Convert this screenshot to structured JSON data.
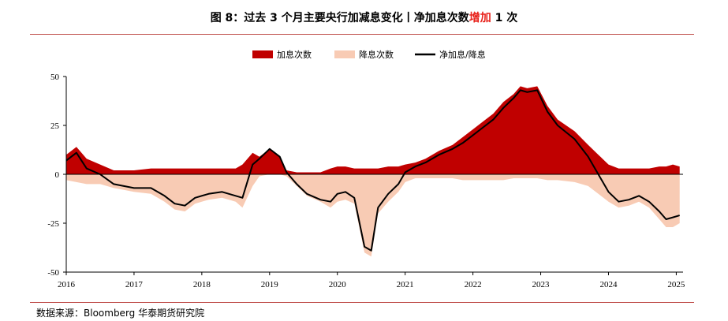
{
  "header": {
    "title_main": "图 8：过去 3 个月主要央行加减息变化丨净加息次数",
    "title_highlight": "增加",
    "title_tail": " 1 次"
  },
  "source_text": "数据来源：Bloomberg 华泰期货研究院",
  "chart_data": {
    "type": "area",
    "title": "图 8：过去 3 个月主要央行加减息变化丨净加息次数增加 1 次",
    "xlabel": "",
    "ylabel": "",
    "x_ticks": [
      "2016",
      "2017",
      "2018",
      "2019",
      "2020",
      "2021",
      "2022",
      "2023",
      "2024",
      "2025"
    ],
    "y_ticks": [
      "50",
      "25",
      "0",
      "-25",
      "-50"
    ],
    "ylim": [
      -50,
      50
    ],
    "xlim": [
      2016.0,
      2025.1
    ],
    "grid": false,
    "legend_position": "top-center",
    "colors": {
      "hikes": "#c00000",
      "cuts": "#f8cbb4",
      "net": "#000000"
    },
    "x": [
      2016.0,
      2016.15,
      2016.3,
      2016.5,
      2016.7,
      2016.85,
      2017.0,
      2017.25,
      2017.45,
      2017.6,
      2017.75,
      2017.9,
      2018.1,
      2018.3,
      2018.5,
      2018.6,
      2018.75,
      2018.85,
      2019.0,
      2019.15,
      2019.25,
      2019.4,
      2019.55,
      2019.75,
      2019.9,
      2020.0,
      2020.12,
      2020.25,
      2020.4,
      2020.5,
      2020.6,
      2020.75,
      2020.9,
      2021.0,
      2021.15,
      2021.3,
      2021.5,
      2021.7,
      2021.85,
      2022.0,
      2022.15,
      2022.3,
      2022.45,
      2022.6,
      2022.7,
      2022.8,
      2022.95,
      2023.1,
      2023.25,
      2023.5,
      2023.7,
      2023.85,
      2024.0,
      2024.15,
      2024.3,
      2024.45,
      2024.6,
      2024.75,
      2024.85,
      2024.95,
      2025.05
    ],
    "series": [
      {
        "name": "加息次数",
        "values": [
          10,
          14,
          8,
          5,
          2,
          2,
          2,
          3,
          3,
          3,
          3,
          3,
          3,
          3,
          3,
          5,
          11,
          9,
          13,
          9,
          2,
          1,
          1,
          1,
          3,
          4,
          4,
          3,
          3,
          3,
          3,
          4,
          4,
          5,
          6,
          8,
          12,
          15,
          19,
          23,
          27,
          31,
          37,
          41,
          45,
          44,
          45,
          35,
          28,
          22,
          15,
          10,
          5,
          3,
          3,
          3,
          3,
          4,
          4,
          5,
          4
        ]
      },
      {
        "name": "降息次数",
        "values": [
          -3,
          -4,
          -5,
          -5,
          -7,
          -8,
          -9,
          -10,
          -14,
          -18,
          -19,
          -15,
          -13,
          -12,
          -14,
          -17,
          -6,
          -1,
          0,
          0,
          -1,
          -6,
          -11,
          -14,
          -17,
          -14,
          -13,
          -15,
          -40,
          -42,
          -20,
          -14,
          -9,
          -4,
          -2,
          -2,
          -2,
          -2,
          -3,
          -3,
          -3,
          -3,
          -3,
          -2,
          -2,
          -2,
          -2,
          -3,
          -3,
          -4,
          -6,
          -10,
          -14,
          -17,
          -16,
          -14,
          -17,
          -23,
          -27,
          -27,
          -25
        ]
      },
      {
        "name": "净加息/降息",
        "values": [
          7,
          11,
          3,
          0,
          -5,
          -6,
          -7,
          -7,
          -11,
          -15,
          -16,
          -12,
          -10,
          -9,
          -11,
          -12,
          5,
          8,
          13,
          9,
          1,
          -5,
          -10,
          -13,
          -14,
          -10,
          -9,
          -12,
          -37,
          -39,
          -17,
          -10,
          -5,
          1,
          4,
          6,
          10,
          13,
          16,
          20,
          24,
          28,
          34,
          39,
          43,
          42,
          43,
          32,
          25,
          18,
          9,
          0,
          -9,
          -14,
          -13,
          -11,
          -14,
          -19,
          -23,
          -22,
          -21
        ]
      }
    ]
  }
}
